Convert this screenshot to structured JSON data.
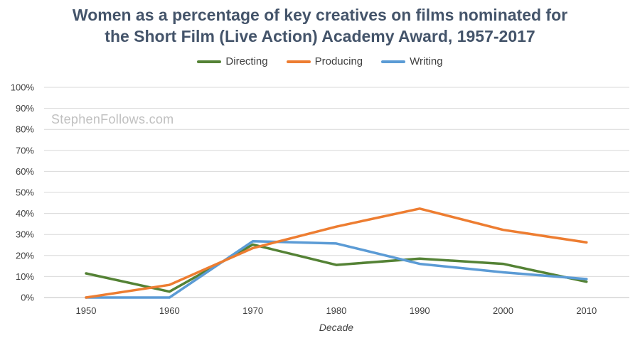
{
  "title_line_1": "Women as a percentage of key creatives on films nominated for",
  "title_line_2": "the Short Film (Live Action) Academy Award, 1957-2017",
  "watermark": "StephenFollows.com",
  "chart_data": {
    "type": "line",
    "title": "Women as a percentage of key creatives on films nominated for the Short Film (Live Action) Academy Award, 1957-2017",
    "xlabel": "Decade",
    "ylabel": "",
    "x": [
      "1950",
      "1960",
      "1970",
      "1980",
      "1990",
      "2000",
      "2010"
    ],
    "ylim": [
      0,
      100
    ],
    "yticks": [
      "0%",
      "10%",
      "20%",
      "30%",
      "40%",
      "50%",
      "60%",
      "70%",
      "80%",
      "90%",
      "100%"
    ],
    "grid": true,
    "legend_position": "top-center",
    "series": [
      {
        "name": "Directing",
        "color": "#548235",
        "values": [
          11.5,
          2.8,
          25.2,
          15.5,
          18.5,
          16.0,
          7.5
        ]
      },
      {
        "name": "Producing",
        "color": "#ed7d31",
        "values": [
          0,
          6.0,
          23.5,
          33.7,
          42.3,
          32.2,
          26.2
        ]
      },
      {
        "name": "Writing",
        "color": "#5b9bd5",
        "values": [
          0,
          0,
          26.8,
          25.7,
          16.0,
          12.0,
          8.8
        ]
      }
    ]
  }
}
